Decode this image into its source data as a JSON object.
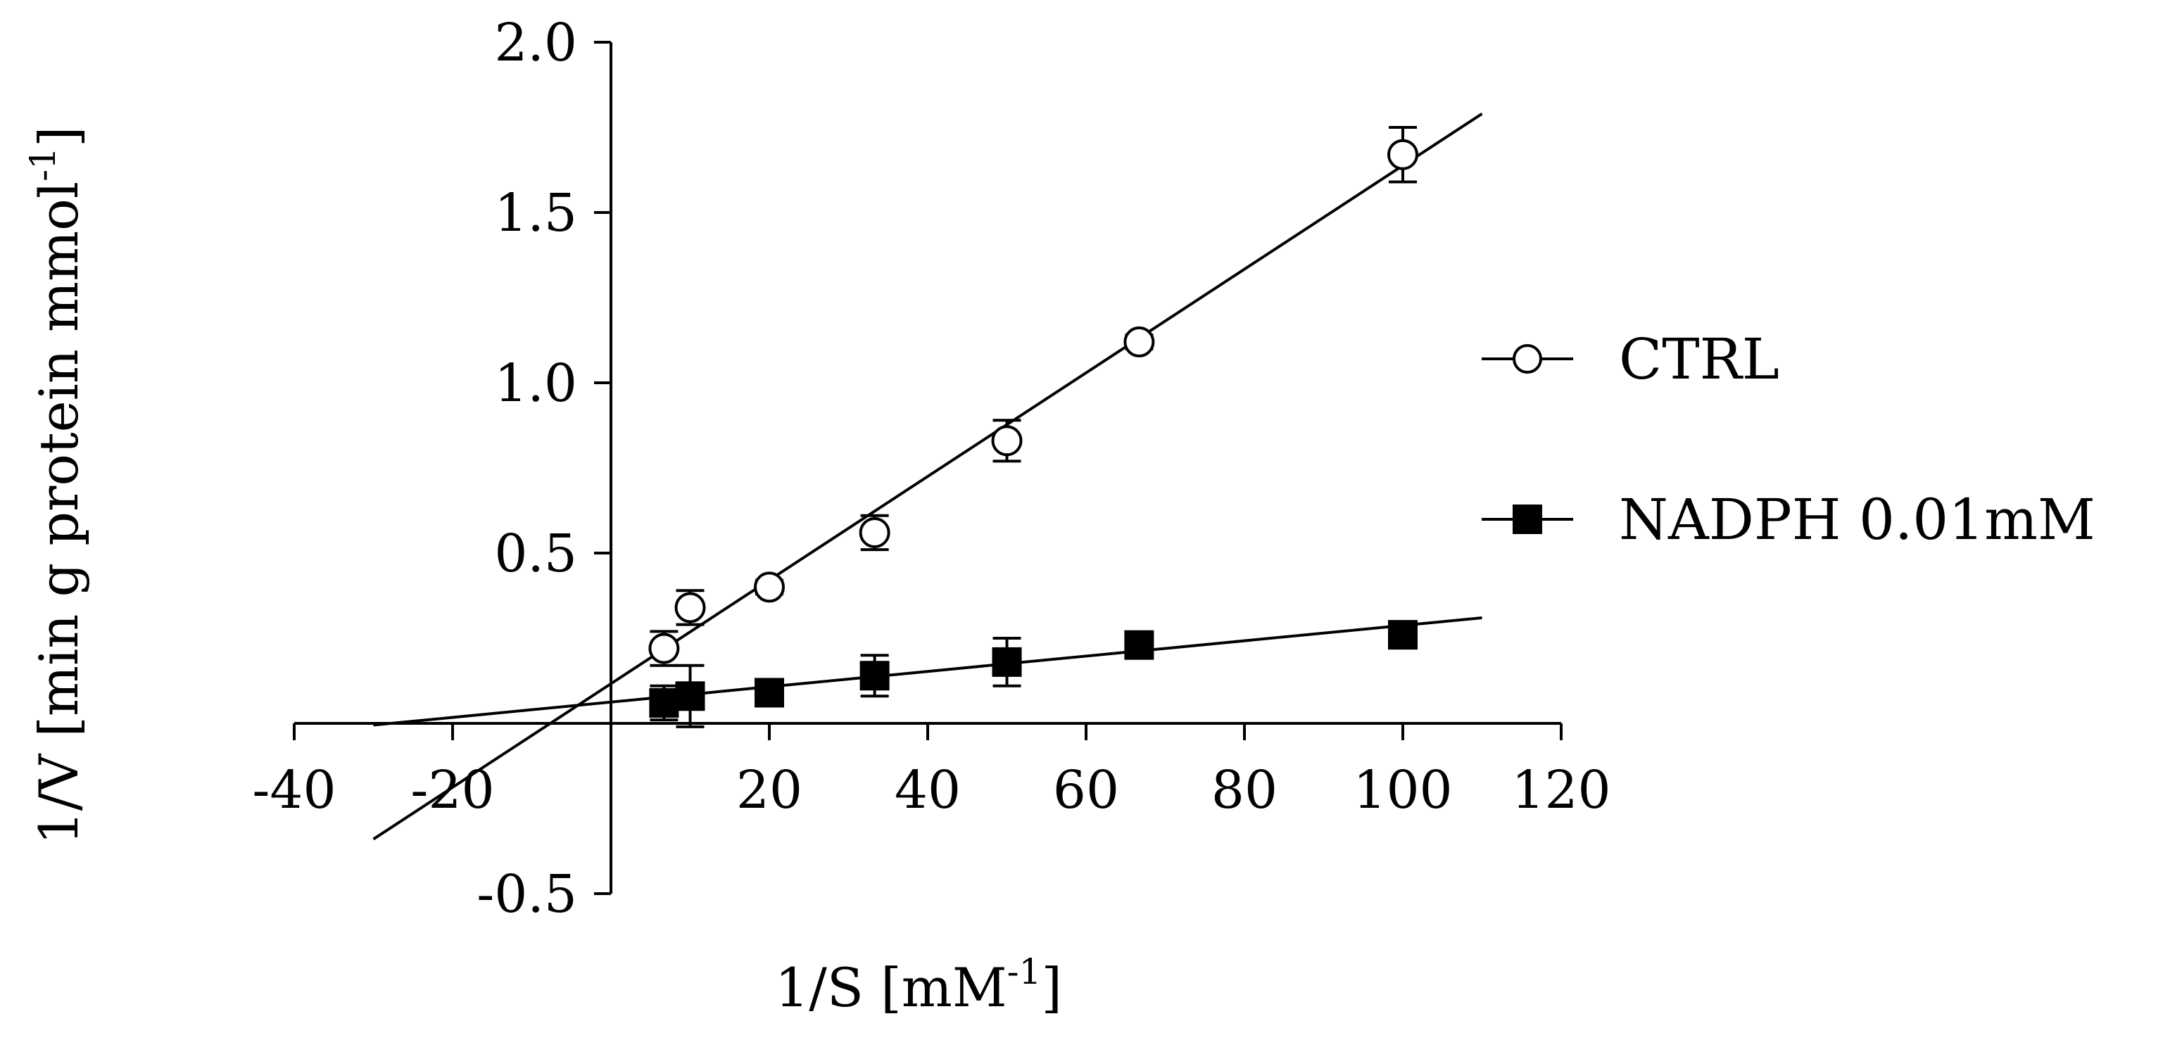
{
  "chart_data": {
    "type": "scatter",
    "xlabel": "1/S [mM",
    "xlabel_sup": "-1",
    "xlabel_end": "]",
    "ylabel": "1/V [min g protein mmol",
    "ylabel_sup": "-1",
    "ylabel_end": "]",
    "xlim": [
      -40,
      120
    ],
    "ylim": [
      -0.5,
      2.0
    ],
    "x_ticks": [
      -40,
      -20,
      20,
      40,
      60,
      80,
      100,
      120
    ],
    "x_tick_labels": [
      "-40",
      "-20",
      "20",
      "40",
      "60",
      "80",
      "100",
      "120"
    ],
    "y_ticks": [
      -0.5,
      0.5,
      1.0,
      1.5,
      2.0
    ],
    "y_tick_labels": [
      "-0.5",
      "0.5",
      "1.0",
      "1.5",
      "2.0"
    ],
    "grid": false,
    "legend_position": "right",
    "series": [
      {
        "name": "CTRL",
        "marker": "open-circle",
        "x": [
          6.7,
          10,
          20,
          33.3,
          50,
          66.7,
          100
        ],
        "y": [
          0.22,
          0.34,
          0.4,
          0.56,
          0.83,
          1.12,
          1.67
        ],
        "err": [
          0.05,
          0.05,
          0.02,
          0.05,
          0.06,
          0.02,
          0.08
        ],
        "fit_line": {
          "x": [
            -30,
            110
          ],
          "y": [
            -0.34,
            1.79
          ]
        }
      },
      {
        "name": "NADPH 0.01mM",
        "marker": "filled-square",
        "x": [
          6.7,
          10,
          20,
          33.3,
          50,
          66.7,
          100
        ],
        "y": [
          0.06,
          0.08,
          0.09,
          0.14,
          0.18,
          0.23,
          0.26
        ],
        "err": [
          0.05,
          0.09,
          0.02,
          0.06,
          0.07,
          0.03,
          0.03
        ],
        "fit_line": {
          "x": [
            -30,
            110
          ],
          "y": [
            -0.005,
            0.31
          ]
        }
      }
    ]
  }
}
